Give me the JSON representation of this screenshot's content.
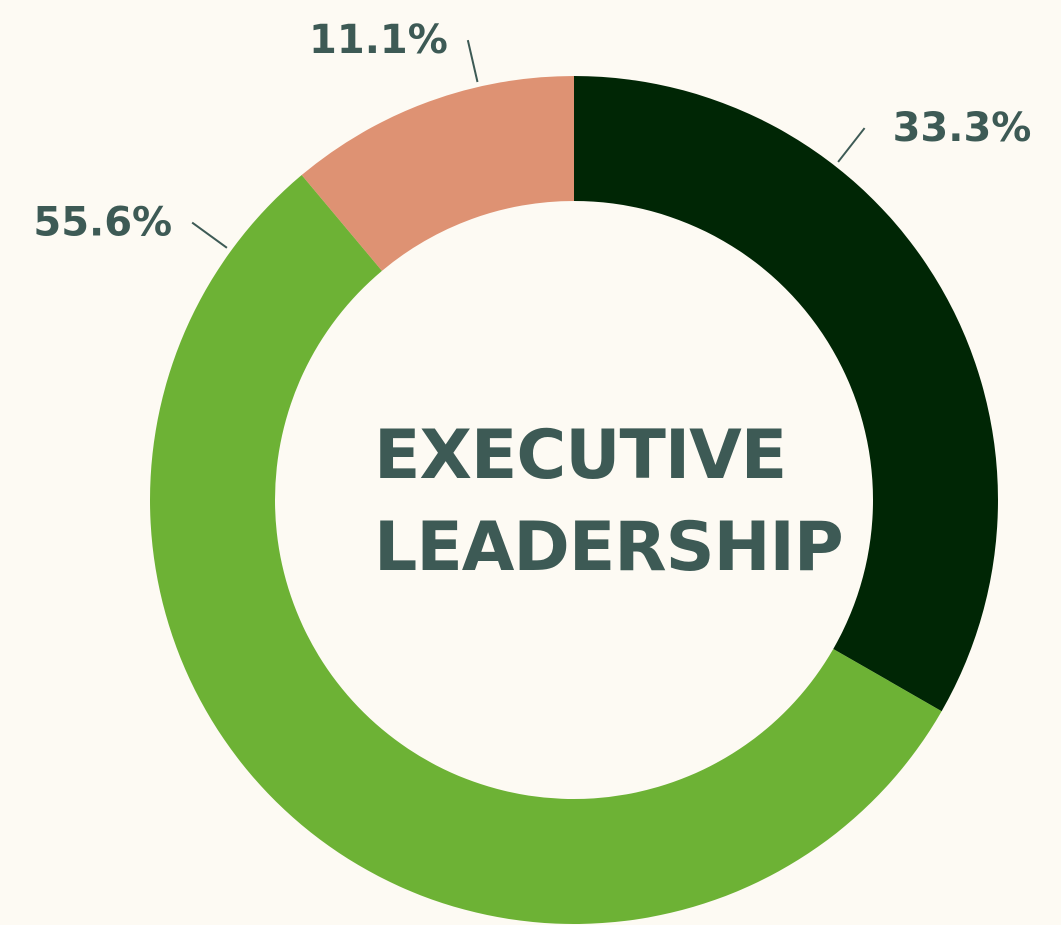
{
  "chart_data": {
    "type": "donut",
    "title": "EXECUTIVE LEADERSHIP",
    "values": [
      33.3,
      55.6,
      11.1
    ],
    "value_labels": [
      "33.3%",
      "55.6%",
      "11.1%"
    ],
    "colors": [
      "#002605",
      "#6db235",
      "#de9273"
    ]
  }
}
